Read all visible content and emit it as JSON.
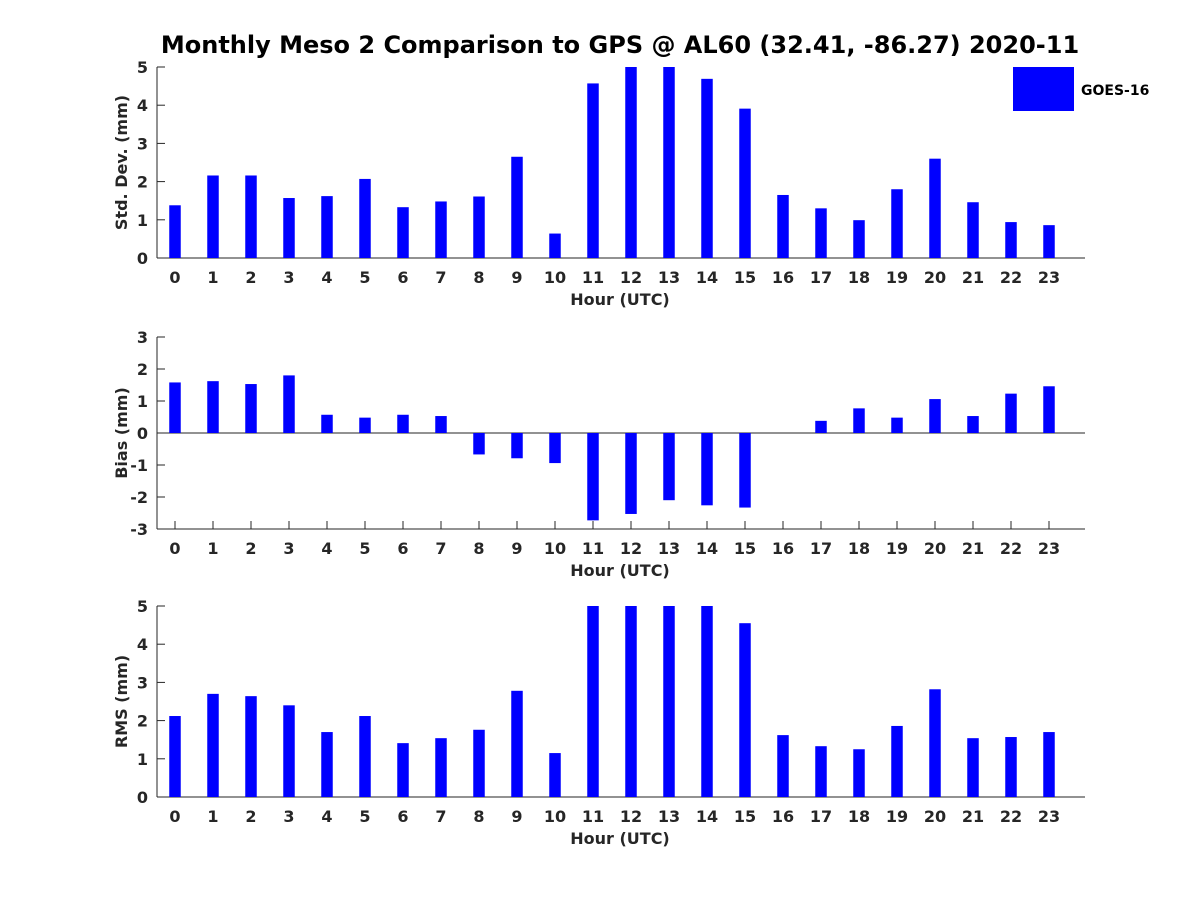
{
  "title": "Monthly Meso 2 Comparison to GPS @ AL60 (32.41, -86.27) 2020-11",
  "legend": {
    "label": "GOES-16",
    "color": "#0000ff"
  },
  "chart_data": [
    {
      "type": "bar",
      "xlabel": "Hour (UTC)",
      "ylabel": "Std. Dev. (mm)",
      "ylim": [
        0,
        5
      ],
      "yticks": [
        "0",
        "1",
        "2",
        "3",
        "4",
        "5"
      ],
      "categories": [
        "0",
        "1",
        "2",
        "3",
        "4",
        "5",
        "6",
        "7",
        "8",
        "9",
        "10",
        "11",
        "12",
        "13",
        "14",
        "15",
        "16",
        "17",
        "18",
        "19",
        "20",
        "21",
        "22",
        "23"
      ],
      "series": [
        {
          "name": "GOES-16",
          "color": "#0000ff",
          "values": [
            1.38,
            2.16,
            2.16,
            1.57,
            1.62,
            2.07,
            1.33,
            1.48,
            1.61,
            2.65,
            0.64,
            4.57,
            5.0,
            5.0,
            4.69,
            3.91,
            1.65,
            1.3,
            0.99,
            1.8,
            2.6,
            1.46,
            0.94,
            0.86
          ]
        }
      ]
    },
    {
      "type": "bar",
      "xlabel": "Hour (UTC)",
      "ylabel": "Bias (mm)",
      "ylim": [
        -3,
        3
      ],
      "yticks": [
        "-3",
        "-2",
        "-1",
        "0",
        "1",
        "2",
        "3"
      ],
      "zero_line": true,
      "categories": [
        "0",
        "1",
        "2",
        "3",
        "4",
        "5",
        "6",
        "7",
        "8",
        "9",
        "10",
        "11",
        "12",
        "13",
        "14",
        "15",
        "16",
        "17",
        "18",
        "19",
        "20",
        "21",
        "22",
        "23"
      ],
      "series": [
        {
          "name": "GOES-16",
          "color": "#0000ff",
          "values": [
            1.58,
            1.62,
            1.53,
            1.8,
            0.57,
            0.48,
            0.57,
            0.53,
            -0.67,
            -0.79,
            -0.94,
            -2.73,
            -2.53,
            -2.1,
            -2.26,
            -2.33,
            0.0,
            0.38,
            0.77,
            0.48,
            1.06,
            0.53,
            1.23,
            1.46
          ]
        }
      ]
    },
    {
      "type": "bar",
      "xlabel": "Hour (UTC)",
      "ylabel": "RMS (mm)",
      "ylim": [
        0,
        5
      ],
      "yticks": [
        "0",
        "1",
        "2",
        "3",
        "4",
        "5"
      ],
      "categories": [
        "0",
        "1",
        "2",
        "3",
        "4",
        "5",
        "6",
        "7",
        "8",
        "9",
        "10",
        "11",
        "12",
        "13",
        "14",
        "15",
        "16",
        "17",
        "18",
        "19",
        "20",
        "21",
        "22",
        "23"
      ],
      "series": [
        {
          "name": "GOES-16",
          "color": "#0000ff",
          "values": [
            2.12,
            2.7,
            2.64,
            2.4,
            1.7,
            2.12,
            1.41,
            1.54,
            1.76,
            2.78,
            1.15,
            5.0,
            5.0,
            5.0,
            5.0,
            4.55,
            1.62,
            1.33,
            1.25,
            1.86,
            2.82,
            1.54,
            1.57,
            1.7
          ]
        }
      ]
    }
  ]
}
